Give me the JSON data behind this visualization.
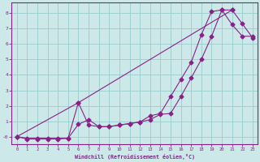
{
  "line1_x": [
    0,
    1,
    2,
    3,
    4,
    5,
    6,
    7,
    8,
    9,
    10,
    11,
    12,
    13,
    14,
    15,
    16,
    17,
    18,
    19,
    20,
    21,
    22,
    23
  ],
  "line1_y": [
    0.0,
    -0.15,
    -0.15,
    -0.15,
    -0.15,
    -0.1,
    0.8,
    1.1,
    0.65,
    0.65,
    0.75,
    0.85,
    0.95,
    1.1,
    1.45,
    1.5,
    2.6,
    3.8,
    5.0,
    6.5,
    8.2,
    8.2,
    7.3,
    6.4
  ],
  "line2_x": [
    0,
    6,
    21
  ],
  "line2_y": [
    0.0,
    2.2,
    8.2
  ],
  "line3_x": [
    0,
    1,
    2,
    3,
    4,
    5,
    6,
    7,
    8,
    9,
    10,
    11,
    12,
    13,
    14,
    15,
    16,
    17,
    18,
    19,
    20,
    21,
    22,
    23
  ],
  "line3_y": [
    0.0,
    -0.1,
    -0.1,
    -0.1,
    -0.1,
    -0.1,
    2.2,
    0.75,
    0.65,
    0.65,
    0.75,
    0.85,
    0.95,
    1.35,
    1.5,
    2.6,
    3.7,
    4.8,
    6.6,
    8.1,
    8.2,
    7.25,
    6.5,
    6.5
  ],
  "line_color": "#882288",
  "marker": "D",
  "marker_size": 2.5,
  "bg_color": "#cce8e8",
  "grid_color": "#99cccc",
  "xlabel": "Windchill (Refroidissement éolien,°C)",
  "xlim": [
    -0.5,
    23.5
  ],
  "ylim": [
    -0.5,
    8.7
  ],
  "xtick_labels": [
    "0",
    "1",
    "2",
    "3",
    "4",
    "5",
    "6",
    "7",
    "8",
    "9",
    "10",
    "11",
    "12",
    "13",
    "14",
    "15",
    "16",
    "17",
    "18",
    "19",
    "20",
    "21",
    "22",
    "23"
  ],
  "yticks": [
    0,
    1,
    2,
    3,
    4,
    5,
    6,
    7,
    8
  ],
  "ytick_labels": [
    "-0",
    "1",
    "2",
    "3",
    "4",
    "5",
    "6",
    "7",
    "8"
  ],
  "tick_color": "#882288",
  "label_color": "#882288",
  "spine_color": "#882288"
}
